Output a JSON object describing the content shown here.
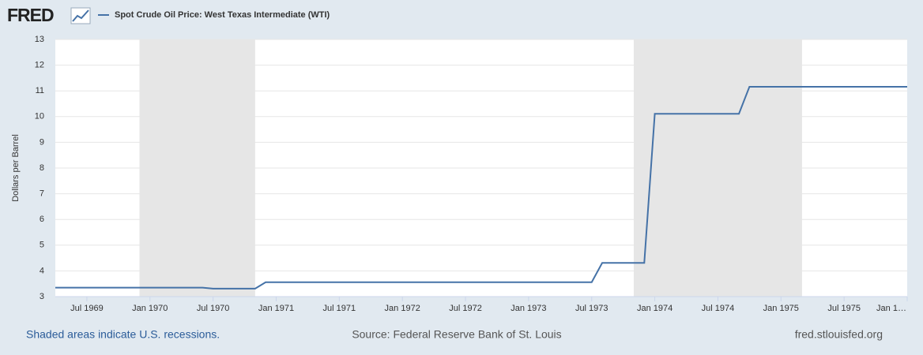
{
  "header": {
    "logo": "FRED"
  },
  "chart_data": {
    "type": "line",
    "legend": "top-left",
    "y_label": "Dollars per Barrel",
    "x": [
      "1969-04",
      "1969-05",
      "1969-06",
      "1969-07",
      "1969-08",
      "1969-09",
      "1969-10",
      "1969-11",
      "1969-12",
      "1970-01",
      "1970-02",
      "1970-03",
      "1970-04",
      "1970-05",
      "1970-06",
      "1970-07",
      "1970-08",
      "1970-09",
      "1970-10",
      "1970-11",
      "1970-12",
      "1971-01",
      "1971-02",
      "1971-03",
      "1971-04",
      "1971-05",
      "1971-06",
      "1971-07",
      "1971-08",
      "1971-09",
      "1971-10",
      "1971-11",
      "1971-12",
      "1972-01",
      "1972-02",
      "1972-03",
      "1972-04",
      "1972-05",
      "1972-06",
      "1972-07",
      "1972-08",
      "1972-09",
      "1972-10",
      "1972-11",
      "1972-12",
      "1973-01",
      "1973-02",
      "1973-03",
      "1973-04",
      "1973-05",
      "1973-06",
      "1973-07",
      "1973-08",
      "1973-09",
      "1973-10",
      "1973-11",
      "1973-12",
      "1974-01",
      "1974-02",
      "1974-03",
      "1974-04",
      "1974-05",
      "1974-06",
      "1974-07",
      "1974-08",
      "1974-09",
      "1974-10",
      "1974-11",
      "1974-12",
      "1975-01",
      "1975-02",
      "1975-03",
      "1975-04",
      "1975-05",
      "1975-06",
      "1975-07",
      "1975-08",
      "1975-09",
      "1975-10",
      "1975-11",
      "1975-12",
      "1976-01"
    ],
    "series": [
      {
        "name": "Spot Crude Oil Price: West Texas Intermediate (WTI)",
        "color": "#4572a7",
        "values": [
          3.35,
          3.35,
          3.35,
          3.35,
          3.35,
          3.35,
          3.35,
          3.35,
          3.35,
          3.35,
          3.35,
          3.35,
          3.35,
          3.35,
          3.35,
          3.31,
          3.31,
          3.31,
          3.31,
          3.31,
          3.56,
          3.56,
          3.56,
          3.56,
          3.56,
          3.56,
          3.56,
          3.56,
          3.56,
          3.56,
          3.56,
          3.56,
          3.56,
          3.56,
          3.56,
          3.56,
          3.56,
          3.56,
          3.56,
          3.56,
          3.56,
          3.56,
          3.56,
          3.56,
          3.56,
          3.56,
          3.56,
          3.56,
          3.56,
          3.56,
          3.56,
          3.56,
          4.31,
          4.31,
          4.31,
          4.31,
          4.31,
          10.11,
          10.11,
          10.11,
          10.11,
          10.11,
          10.11,
          10.11,
          10.11,
          10.11,
          11.16,
          11.16,
          11.16,
          11.16,
          11.16,
          11.16,
          11.16,
          11.16,
          11.16,
          11.16,
          11.16,
          11.16,
          11.16,
          11.16,
          11.16,
          11.16
        ]
      }
    ],
    "recessions": [
      {
        "start": "1969-12",
        "end": "1970-11",
        "color": "#e6e6e6"
      },
      {
        "start": "1973-11",
        "end": "1975-03",
        "color": "#e6e6e6"
      }
    ],
    "xlim": [
      "1969-04",
      "1976-01"
    ],
    "xticks": [
      {
        "value": "1969-07",
        "label": "Jul 1969"
      },
      {
        "value": "1970-01",
        "label": "Jan 1970"
      },
      {
        "value": "1970-07",
        "label": "Jul 1970"
      },
      {
        "value": "1971-01",
        "label": "Jan 1971"
      },
      {
        "value": "1971-07",
        "label": "Jul 1971"
      },
      {
        "value": "1972-01",
        "label": "Jan 1972"
      },
      {
        "value": "1972-07",
        "label": "Jul 1972"
      },
      {
        "value": "1973-01",
        "label": "Jan 1973"
      },
      {
        "value": "1973-07",
        "label": "Jul 1973"
      },
      {
        "value": "1974-01",
        "label": "Jan 1974"
      },
      {
        "value": "1974-07",
        "label": "Jul 1974"
      },
      {
        "value": "1975-01",
        "label": "Jan 1975"
      },
      {
        "value": "1975-07",
        "label": "Jul 1975"
      },
      {
        "value": "1976-01",
        "label": "Jan 1…"
      }
    ],
    "ylim": [
      3,
      13
    ],
    "yticks": [
      3,
      4,
      5,
      6,
      7,
      8,
      9,
      10,
      11,
      12,
      13
    ],
    "grid": true
  },
  "footer": {
    "note": "Shaded areas indicate U.S. recessions.",
    "source": "Source: Federal Reserve Bank of St. Louis",
    "site": "fred.stlouisfed.org"
  }
}
